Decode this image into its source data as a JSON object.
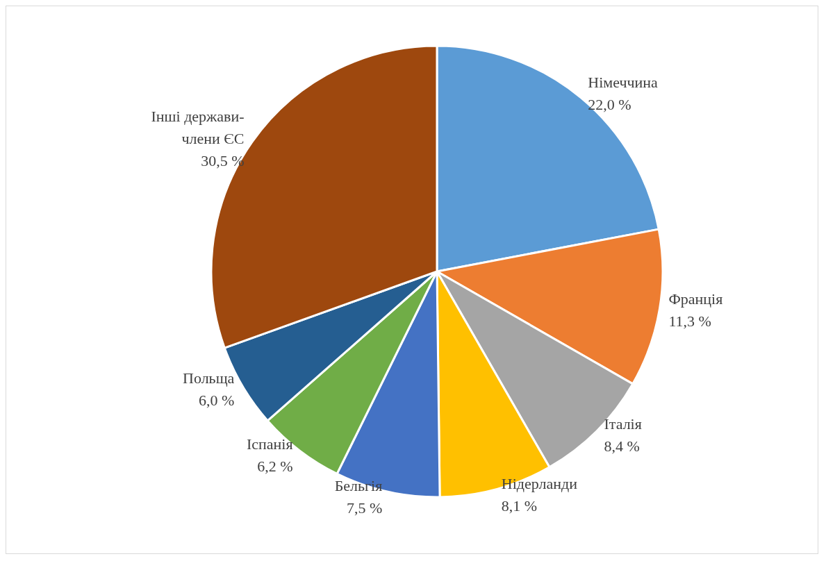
{
  "chart_data": {
    "type": "pie",
    "categories": [
      "Німеччина",
      "Франція",
      "Італія",
      "Нідерланди",
      "Бельгія",
      "Іспанія",
      "Польща",
      "Інші держави-члени ЄС"
    ],
    "values": [
      22.0,
      11.3,
      8.4,
      8.1,
      7.5,
      6.2,
      6.0,
      30.5
    ],
    "value_labels": [
      "22,0 %",
      "11,3 %",
      "8,4 %",
      "8,1 %",
      "7,5 %",
      "6,2 %",
      "6,0 %",
      "30,5 %"
    ],
    "colors": [
      "#5b9bd5",
      "#ed7d31",
      "#a5a5a5",
      "#ffc000",
      "#4472c4",
      "#70ad47",
      "#255e91",
      "#9e480e"
    ],
    "legend": false
  }
}
